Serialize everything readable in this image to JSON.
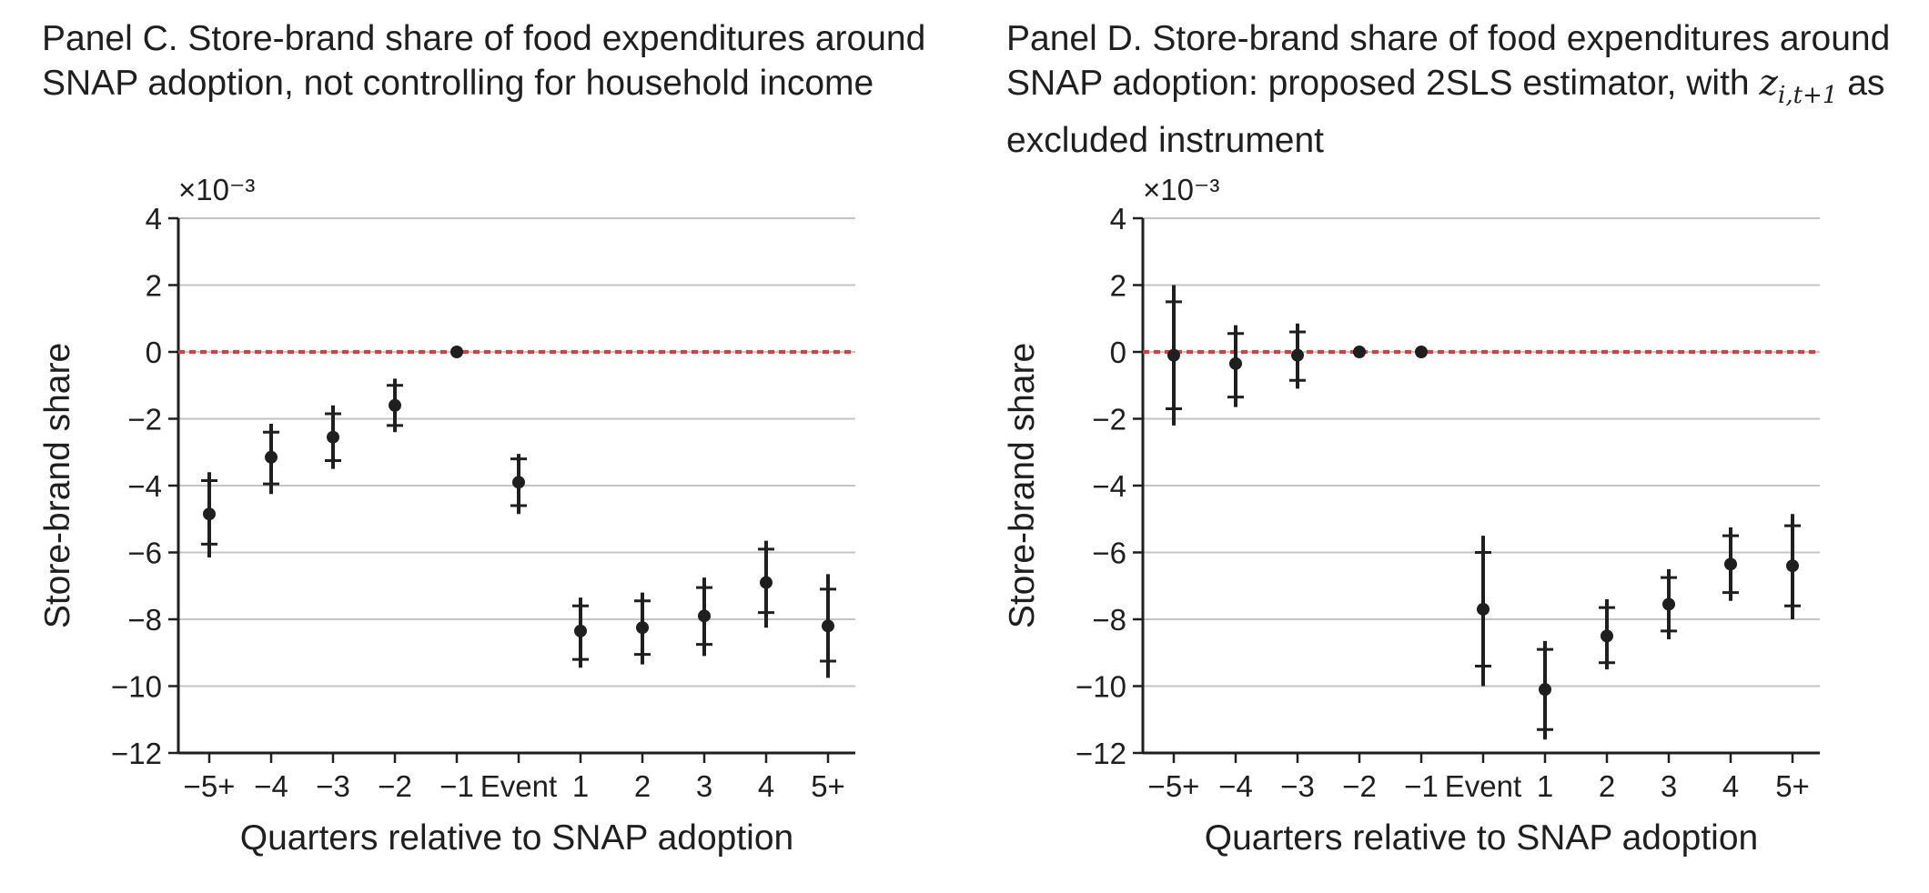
{
  "chart_data": [
    {
      "type": "scatter",
      "title_parts": [
        "Panel C. Store-brand share of food expenditures around SNAP adoption, not controlling for household income"
      ],
      "title": "Panel C. Store-brand share of food expenditures around SNAP adoption, not controlling for household income",
      "xlabel": "Quarters relative to SNAP adoption",
      "ylabel": "Store-brand share",
      "y_multiplier": "×10⁻³",
      "categories": [
        "−5+",
        "−4",
        "−3",
        "−2",
        "−1",
        "Event",
        "1",
        "2",
        "3",
        "4",
        "5+"
      ],
      "yticks": [
        "4",
        "2",
        "0",
        "−2",
        "−4",
        "−6",
        "−8",
        "−10",
        "−12"
      ],
      "ylim": [
        -12,
        4
      ],
      "grid": true,
      "reference_line": 0,
      "reference_color": "#e03a3a",
      "point_color": "#1f1f1f",
      "values": [
        -4.85,
        -3.15,
        -2.55,
        -1.6,
        0.0,
        -3.9,
        -8.35,
        -8.25,
        -7.9,
        -6.9,
        -8.2
      ],
      "ci_inner": [
        [
          -5.75,
          -3.85
        ],
        [
          -3.95,
          -2.4
        ],
        [
          -3.25,
          -1.85
        ],
        [
          -2.2,
          -1.0
        ],
        [
          0.0,
          0.0
        ],
        [
          -4.6,
          -3.2
        ],
        [
          -9.2,
          -7.6
        ],
        [
          -9.05,
          -7.45
        ],
        [
          -8.75,
          -7.05
        ],
        [
          -7.8,
          -5.9
        ],
        [
          -9.25,
          -7.1
        ]
      ],
      "ci_outer": [
        [
          -6.15,
          -3.6
        ],
        [
          -4.25,
          -2.15
        ],
        [
          -3.5,
          -1.6
        ],
        [
          -2.4,
          -0.8
        ],
        [
          0.0,
          0.0
        ],
        [
          -4.85,
          -3.05
        ],
        [
          -9.45,
          -7.35
        ],
        [
          -9.35,
          -7.2
        ],
        [
          -9.1,
          -6.75
        ],
        [
          -8.25,
          -5.65
        ],
        [
          -9.75,
          -6.65
        ]
      ]
    },
    {
      "type": "scatter",
      "title": "Panel D. Store-brand share of food expenditures around SNAP adoption: proposed 2SLS estimator, with z_{i,t+1} as excluded instrument",
      "title_parts": [
        "Panel D. Store-brand share of food expenditures around SNAP adoption: proposed 2SLS estimator, with ",
        "z",
        "i,t+1",
        " as excluded instrument"
      ],
      "xlabel": "Quarters relative to SNAP adoption",
      "ylabel": "Store-brand share",
      "y_multiplier": "×10⁻³",
      "categories": [
        "−5+",
        "−4",
        "−3",
        "−2",
        "−1",
        "Event",
        "1",
        "2",
        "3",
        "4",
        "5+"
      ],
      "yticks": [
        "4",
        "2",
        "0",
        "−2",
        "−4",
        "−6",
        "−8",
        "−10",
        "−12"
      ],
      "ylim": [
        -12,
        4
      ],
      "grid": true,
      "reference_line": 0,
      "reference_color": "#e03a3a",
      "point_color": "#1f1f1f",
      "values": [
        -0.1,
        -0.35,
        -0.1,
        0.0,
        0.0,
        -7.7,
        -10.1,
        -8.5,
        -7.55,
        -6.35,
        -6.4
      ],
      "ci_inner": [
        [
          -1.7,
          1.5
        ],
        [
          -1.35,
          0.55
        ],
        [
          -0.85,
          0.6
        ],
        [
          0.0,
          0.0
        ],
        [
          0.0,
          0.0
        ],
        [
          -9.4,
          -6.0
        ],
        [
          -11.3,
          -8.9
        ],
        [
          -9.3,
          -7.65
        ],
        [
          -8.35,
          -6.75
        ],
        [
          -7.2,
          -5.5
        ],
        [
          -7.6,
          -5.2
        ]
      ],
      "ci_outer": [
        [
          -2.2,
          2.0
        ],
        [
          -1.65,
          0.8
        ],
        [
          -1.1,
          0.85
        ],
        [
          0.0,
          0.0
        ],
        [
          0.0,
          0.0
        ],
        [
          -10.0,
          -5.5
        ],
        [
          -11.6,
          -8.65
        ],
        [
          -9.5,
          -7.4
        ],
        [
          -8.6,
          -6.5
        ],
        [
          -7.45,
          -5.25
        ],
        [
          -8.0,
          -4.85
        ]
      ]
    }
  ]
}
